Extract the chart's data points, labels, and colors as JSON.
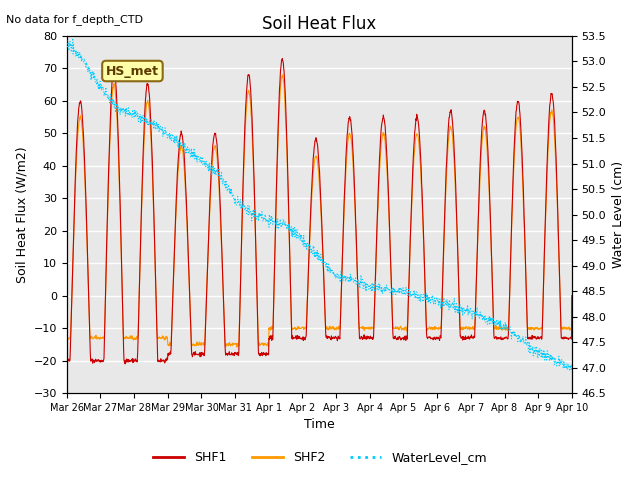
{
  "title": "Soil Heat Flux",
  "top_left_text": "No data for f_depth_CTD",
  "ylabel_left": "Soil Heat Flux (W/m2)",
  "ylabel_right": "Water Level (cm)",
  "xlabel": "Time",
  "ylim_left": [
    -30,
    80
  ],
  "ylim_right": [
    46.5,
    53.5
  ],
  "yticks_left": [
    -30,
    -20,
    -10,
    0,
    10,
    20,
    30,
    40,
    50,
    60,
    70,
    80
  ],
  "yticks_right": [
    46.5,
    47.0,
    47.5,
    48.0,
    48.5,
    49.0,
    49.5,
    50.0,
    50.5,
    51.0,
    51.5,
    52.0,
    52.5,
    53.0,
    53.5
  ],
  "xtick_labels": [
    "Mar 26",
    "Mar 27",
    "Mar 28",
    "Mar 29",
    "Mar 30",
    "Mar 31",
    "Apr 1",
    "Apr 2",
    "Apr 3",
    "Apr 4",
    "Apr 5",
    "Apr 6",
    "Apr 7",
    "Apr 8",
    "Apr 9",
    "Apr 10"
  ],
  "xtick_positions": [
    0,
    1,
    2,
    3,
    4,
    5,
    6,
    7,
    8,
    9,
    10,
    11,
    12,
    13,
    14,
    15
  ],
  "color_shf1": "#cc0000",
  "color_shf2": "#ff9900",
  "color_water": "#00ccff",
  "legend_label1": "SHF1",
  "legend_label2": "SHF2",
  "legend_label3": "WaterLevel_cm",
  "bg_color": "#e8e8e8",
  "station_label": "HS_met",
  "grid_color": "#ffffff"
}
